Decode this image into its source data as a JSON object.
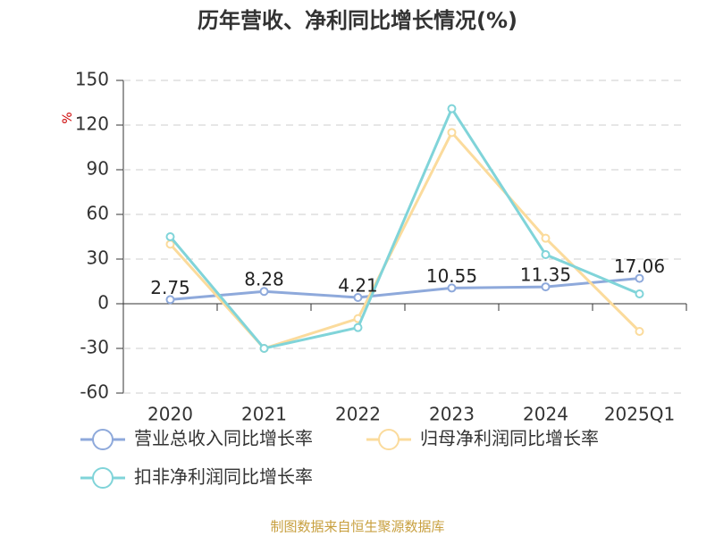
{
  "chart_data": {
    "type": "line",
    "title": "历年营收、净利同比增长情况(%)",
    "y_label": "%",
    "categories": [
      "2020",
      "2021",
      "2022",
      "2023",
      "2024",
      "2025Q1"
    ],
    "series": [
      {
        "name": "营业总收入同比增长率",
        "color": "#8ea9db",
        "values": [
          2.75,
          8.28,
          4.21,
          10.55,
          11.35,
          17.06
        ],
        "show_labels": true
      },
      {
        "name": "归母净利润同比增长率",
        "color": "#fbdb9c",
        "values": [
          40,
          -30,
          -10,
          115,
          44,
          -18.6
        ]
      },
      {
        "name": "扣非净利润同比增长率",
        "color": "#80d4d9",
        "values": [
          45,
          -30,
          -16,
          131,
          33,
          6.6
        ]
      }
    ],
    "ylim": [
      -60,
      150
    ],
    "yticks": [
      -60,
      -30,
      0,
      30,
      60,
      90,
      120,
      150
    ],
    "grid": true,
    "source": "制图数据来自恒生聚源数据库"
  }
}
